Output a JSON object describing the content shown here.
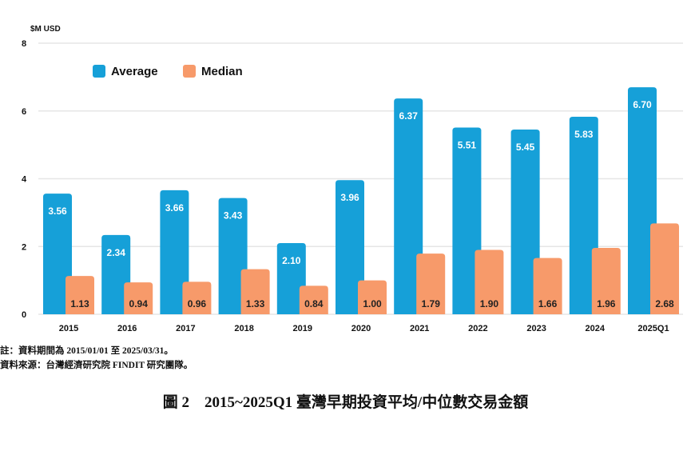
{
  "chart_data": {
    "type": "bar",
    "ylabel": "$M USD",
    "ylim": [
      0,
      8
    ],
    "yticks": [
      0,
      2,
      4,
      6,
      8
    ],
    "grid": true,
    "legend_position": "top-left",
    "categories": [
      "2015",
      "2016",
      "2017",
      "2018",
      "2019",
      "2020",
      "2021",
      "2022",
      "2023",
      "2024",
      "2025Q1"
    ],
    "series": [
      {
        "name": "Average",
        "color": "#16a0d8",
        "values": [
          3.56,
          2.34,
          3.66,
          3.43,
          2.1,
          3.96,
          6.37,
          5.51,
          5.45,
          5.83,
          6.7
        ]
      },
      {
        "name": "Median",
        "color": "#f79a6a",
        "values": [
          1.13,
          0.94,
          0.96,
          1.33,
          0.84,
          1.0,
          1.79,
          1.9,
          1.66,
          1.96,
          2.68
        ]
      }
    ]
  },
  "notes": {
    "period": "註：資料期間為 2015/01/01 至 2025/03/31。",
    "source": "資料來源：台灣經濟研究院 FINDIT 研究團隊。"
  },
  "caption": "圖 2　2015~2025Q1 臺灣早期投資平均/中位數交易金額"
}
